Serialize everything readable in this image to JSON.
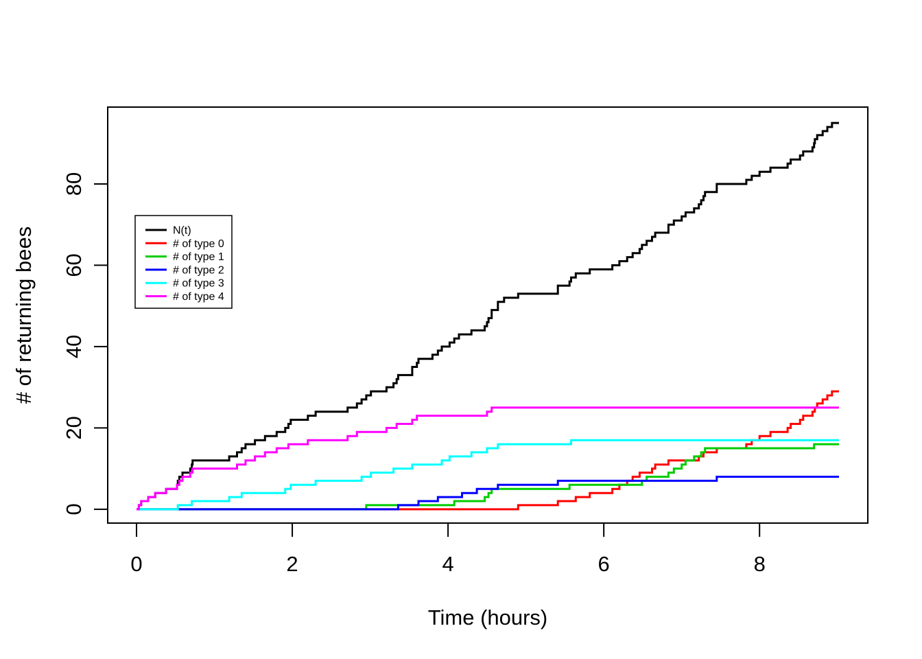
{
  "chart_data": {
    "type": "line",
    "subtype": "step-counting-process",
    "title": "",
    "xlabel": "Time (hours)",
    "ylabel": "# of returning bees",
    "x_ticks": [
      0,
      2,
      4,
      6,
      8
    ],
    "y_ticks": [
      0,
      20,
      40,
      60,
      80
    ],
    "xlim": [
      -0.37,
      9.39
    ],
    "ylim": [
      -3.4,
      98.9
    ],
    "t_start": 0,
    "t_end": 9.02,
    "grid": false,
    "legend_position": "upper-left-inside",
    "legend_border": true,
    "series": [
      {
        "name": "N(t)",
        "color": "#000000",
        "start_value": 0,
        "final_value": 95,
        "jump_times": [
          0.03,
          0.06,
          0.15,
          0.24,
          0.38,
          0.52,
          0.53,
          0.55,
          0.59,
          0.69,
          0.71,
          0.72,
          1.19,
          1.29,
          1.35,
          1.4,
          1.52,
          1.65,
          1.8,
          1.91,
          1.95,
          1.98,
          2.2,
          2.3,
          2.71,
          2.83,
          2.89,
          2.95,
          3.01,
          3.21,
          3.3,
          3.34,
          3.36,
          3.54,
          3.54,
          3.6,
          3.62,
          3.8,
          3.87,
          3.92,
          4.02,
          4.08,
          4.14,
          4.3,
          4.47,
          4.5,
          4.52,
          4.56,
          4.56,
          4.64,
          4.64,
          4.72,
          4.9,
          5.41,
          5.41,
          5.56,
          5.58,
          5.64,
          5.82,
          6.11,
          6.2,
          6.3,
          6.37,
          6.46,
          6.49,
          6.55,
          6.62,
          6.66,
          6.83,
          6.83,
          6.9,
          7.0,
          7.05,
          7.16,
          7.22,
          7.25,
          7.28,
          7.3,
          7.45,
          7.45,
          7.83,
          7.9,
          8.0,
          8.14,
          8.36,
          8.4,
          8.52,
          8.56,
          8.68,
          8.7,
          8.71,
          8.74,
          8.81,
          8.87,
          8.93
        ]
      },
      {
        "name": "# of type 0",
        "color": "#FF0000",
        "start_value": 0,
        "final_value": 29,
        "jump_times": [
          4.9,
          5.41,
          5.64,
          5.82,
          6.11,
          6.2,
          6.3,
          6.37,
          6.46,
          6.62,
          6.66,
          6.83,
          7.22,
          7.28,
          7.45,
          7.83,
          7.9,
          8.0,
          8.14,
          8.36,
          8.4,
          8.52,
          8.56,
          8.68,
          8.71,
          8.74,
          8.81,
          8.87,
          8.93
        ]
      },
      {
        "name": "# of type 1",
        "color": "#00CD00",
        "start_value": 0,
        "final_value": 16,
        "jump_times": [
          2.95,
          4.08,
          4.47,
          4.52,
          4.56,
          5.56,
          6.49,
          6.55,
          6.83,
          6.9,
          7.0,
          7.05,
          7.16,
          7.25,
          7.3,
          8.7
        ]
      },
      {
        "name": "# of type 2",
        "color": "#0000FF",
        "start_value": 0,
        "final_value": 8,
        "jump_times": [
          3.36,
          3.62,
          3.87,
          4.18,
          4.37,
          4.64,
          5.41,
          7.45
        ]
      },
      {
        "name": "# of type 3",
        "color": "#00FFFF",
        "start_value": 0,
        "final_value": 17,
        "jump_times": [
          0.53,
          0.71,
          1.19,
          1.35,
          1.91,
          1.98,
          2.3,
          2.89,
          3.01,
          3.3,
          3.54,
          3.92,
          4.02,
          4.3,
          4.5,
          4.64,
          5.58
        ]
      },
      {
        "name": "# of type 4",
        "color": "#FF00FF",
        "start_value": 0,
        "final_value": 25,
        "jump_times": [
          0.03,
          0.06,
          0.15,
          0.24,
          0.38,
          0.52,
          0.55,
          0.59,
          0.69,
          0.72,
          1.29,
          1.4,
          1.52,
          1.65,
          1.8,
          1.95,
          2.2,
          2.71,
          2.83,
          3.21,
          3.34,
          3.54,
          3.6,
          4.5,
          4.56
        ]
      }
    ]
  }
}
